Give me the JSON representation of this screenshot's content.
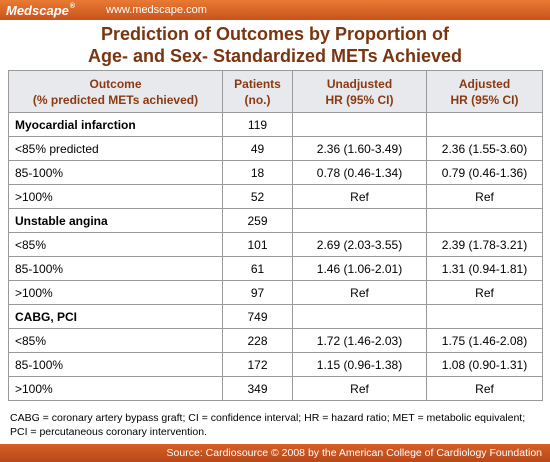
{
  "header": {
    "logo": "Medscape",
    "logo_mark": "®",
    "url": "www.medscape.com"
  },
  "title": {
    "line1": "Prediction of Outcomes by Proportion of",
    "line2": "Age- and Sex- Standardized METs Achieved"
  },
  "table": {
    "headers": {
      "outcome_l1": "Outcome",
      "outcome_l2": "(% predicted METs achieved)",
      "patients_l1": "Patients",
      "patients_l2": "(no.)",
      "unadj_l1": "Unadjusted",
      "unadj_l2": "HR (95% CI)",
      "adj_l1": "Adjusted",
      "adj_l2": "HR (95% CI)"
    },
    "rows": [
      {
        "outcome": "Myocardial infarction",
        "patients": "119",
        "unadjusted": "",
        "adjusted": ""
      },
      {
        "outcome": "<85% predicted",
        "patients": "49",
        "unadjusted": "2.36 (1.60-3.49)",
        "adjusted": "2.36 (1.55-3.60)"
      },
      {
        "outcome": "85-100%",
        "patients": "18",
        "unadjusted": "0.78 (0.46-1.34)",
        "adjusted": "0.79 (0.46-1.36)"
      },
      {
        "outcome": ">100%",
        "patients": "52",
        "unadjusted": "Ref",
        "adjusted": "Ref"
      },
      {
        "outcome": "Unstable angina",
        "patients": "259",
        "unadjusted": "",
        "adjusted": ""
      },
      {
        "outcome": "<85%",
        "patients": "101",
        "unadjusted": "2.69 (2.03-3.55)",
        "adjusted": "2.39 (1.78-3.21)"
      },
      {
        "outcome": "85-100%",
        "patients": "61",
        "unadjusted": "1.46 (1.06-2.01)",
        "adjusted": "1.31 (0.94-1.81)"
      },
      {
        "outcome": ">100%",
        "patients": "97",
        "unadjusted": "Ref",
        "adjusted": "Ref"
      },
      {
        "outcome": "CABG, PCI",
        "patients": "749",
        "unadjusted": "",
        "adjusted": ""
      },
      {
        "outcome": "<85%",
        "patients": "228",
        "unadjusted": "1.72 (1.46-2.03)",
        "adjusted": "1.75 (1.46-2.08)"
      },
      {
        "outcome": "85-100%",
        "patients": "172",
        "unadjusted": "1.15 (0.96-1.38)",
        "adjusted": "1.08 (0.90-1.31)"
      },
      {
        "outcome": ">100%",
        "patients": "349",
        "unadjusted": "Ref",
        "adjusted": "Ref"
      }
    ]
  },
  "footnote": {
    "line1": "CABG = coronary artery bypass graft; CI = confidence interval; HR = hazard ratio; MET = metabolic equivalent;",
    "line2": "PCI = percutaneous coronary intervention."
  },
  "footer": {
    "source": "Source: Cardiosource © 2008 by the American College of Cardiology Foundation"
  },
  "colors": {
    "brand_orange": "#d9642a",
    "title_brown": "#7a3510",
    "header_bg": "#e8e9ec"
  }
}
